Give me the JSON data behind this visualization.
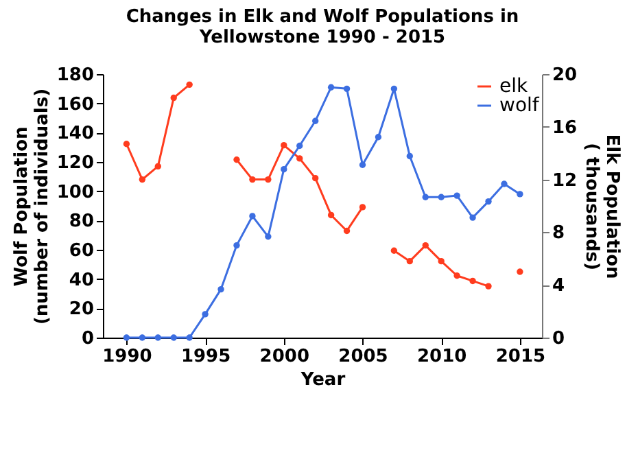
{
  "chart_data": {
    "type": "line",
    "title": "Changes in Elk and Wolf Populations in\nYellowstone 1990 - 2015",
    "xlabel": "Year",
    "ylabel": "Wolf Population\n(number of individuals)",
    "y2label": "Elk Population\n( thousands)",
    "x": [
      1990,
      1991,
      1992,
      1993,
      1994,
      1995,
      1996,
      1997,
      1998,
      1999,
      2000,
      2001,
      2002,
      2003,
      2004,
      2005,
      2006,
      2007,
      2008,
      2009,
      2010,
      2011,
      2012,
      2013,
      2014,
      2015
    ],
    "series": [
      {
        "name": "elk",
        "color": "#ff3c1e",
        "axis": "y2",
        "values": [
          14.7,
          12.0,
          13.0,
          18.2,
          19.2,
          null,
          null,
          13.5,
          12.0,
          12.0,
          14.6,
          13.6,
          12.1,
          9.3,
          8.1,
          9.9,
          null,
          6.6,
          5.8,
          7.0,
          5.8,
          4.7,
          4.3,
          3.9,
          null,
          5.0
        ]
      },
      {
        "name": "wolf",
        "color": "#3c6ee1",
        "values": [
          0,
          0,
          0,
          0,
          0,
          16,
          33,
          63,
          83,
          69,
          115,
          131,
          148,
          171,
          170,
          118,
          137,
          170,
          124,
          96,
          96,
          97,
          82,
          93,
          105,
          98
        ]
      }
    ],
    "xlim": [
      1988.5,
      2016.4
    ],
    "xticks": [
      1990,
      1995,
      2000,
      2005,
      2010,
      2015
    ],
    "ylim": [
      0,
      180
    ],
    "yticks": [
      0,
      20,
      40,
      60,
      80,
      100,
      120,
      140,
      160,
      180
    ],
    "y2lim": [
      0,
      20
    ],
    "y2ticks": [
      0,
      4,
      8,
      12,
      16,
      20
    ],
    "legend": "top right",
    "marker": "circle",
    "grid": false
  }
}
